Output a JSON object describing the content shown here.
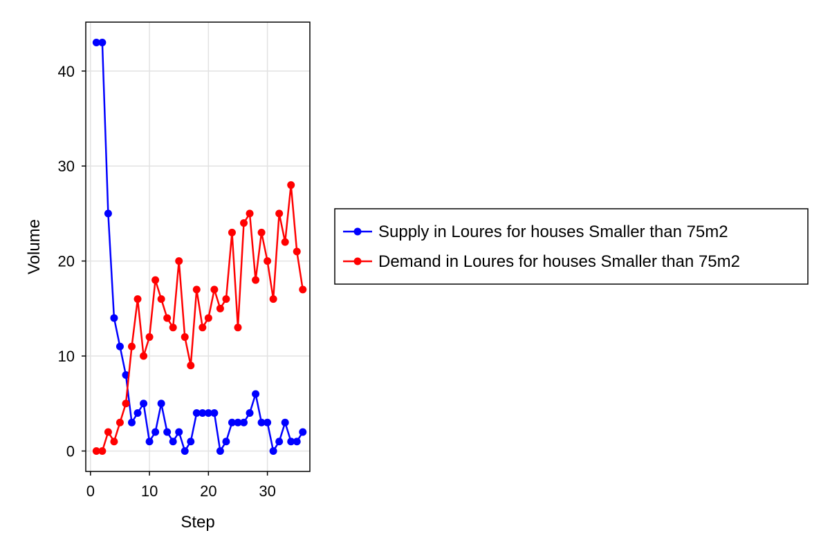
{
  "chart_data": {
    "type": "line",
    "title": "",
    "xlabel": "Step",
    "ylabel": "Volume",
    "xlim": [
      -0.8,
      37.2
    ],
    "ylim": [
      -2.15,
      45.15
    ],
    "xticks": [
      0,
      10,
      20,
      30
    ],
    "yticks": [
      0,
      10,
      20,
      30,
      40
    ],
    "grid": true,
    "legend_position": "right",
    "x": [
      1,
      2,
      3,
      4,
      5,
      6,
      7,
      8,
      9,
      10,
      11,
      12,
      13,
      14,
      15,
      16,
      17,
      18,
      19,
      20,
      21,
      22,
      23,
      24,
      25,
      26,
      27,
      28,
      29,
      30,
      31,
      32,
      33,
      34,
      35,
      36
    ],
    "series": [
      {
        "name": "Supply in Loures for houses Smaller than 75m2",
        "color": "#0000ff",
        "values": [
          43,
          43,
          25,
          14,
          11,
          8,
          3,
          4,
          5,
          1,
          2,
          5,
          2,
          1,
          2,
          0,
          1,
          4,
          4,
          4,
          4,
          0,
          1,
          3,
          3,
          3,
          4,
          6,
          3,
          3,
          0,
          1,
          3,
          1,
          1,
          2
        ]
      },
      {
        "name": "Demand in Loures for houses Smaller than 75m2",
        "color": "#ff0000",
        "values": [
          0,
          0,
          2,
          1,
          3,
          5,
          11,
          16,
          10,
          12,
          18,
          16,
          14,
          13,
          20,
          12,
          9,
          17,
          13,
          14,
          17,
          15,
          16,
          23,
          13,
          24,
          25,
          18,
          23,
          20,
          16,
          25,
          22,
          28,
          21,
          17
        ]
      }
    ]
  }
}
